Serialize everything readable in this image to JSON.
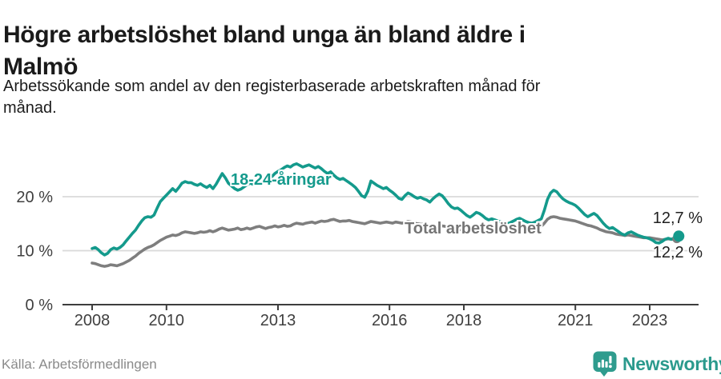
{
  "header": {
    "title_line1": "Högre arbetslöshet bland unga än bland äldre i",
    "title_line2": "Malmö",
    "subtitle_line1": "Arbetssökande som andel av den registerbaserade arbetskraften månad för",
    "subtitle_line2": "månad."
  },
  "footer": {
    "source": "Källa: Arbetsförmedlingen",
    "brand_name": "Newsworthy",
    "brand_icon": "newsworthy-chart-bubble-icon",
    "brand_color": "#2f9c8e"
  },
  "chart_data": {
    "type": "line",
    "title": "Högre arbetslöshet bland unga än bland äldre i Malmö",
    "subtitle": "Arbetssökande som andel av den registerbaserade arbetskraften månad för månad.",
    "xlabel": "",
    "ylabel": "",
    "x_start": {
      "year": 2008,
      "month": 1
    },
    "x_end": {
      "year": 2023,
      "month": 10
    },
    "x_ticks": [
      2008,
      2010,
      2013,
      2016,
      2018,
      2021,
      2023
    ],
    "y_ticks": [
      {
        "value": 0,
        "label": "0 %"
      },
      {
        "value": 10,
        "label": "10 %"
      },
      {
        "value": 20,
        "label": "20 %"
      }
    ],
    "ylim": [
      0,
      27.5
    ],
    "grid": "horizontal-light-gridlines-at-10-and-20",
    "legend_position": "inline-labels-on-lines",
    "axis_color": "#3d3d3d",
    "grid_color": "#d9d9d9",
    "series": [
      {
        "name": "Total arbetslöshet",
        "color": "#7e7e7e",
        "end_value": 12.2,
        "end_label": "12,2 %",
        "values": [
          7.7,
          7.6,
          7.4,
          7.2,
          7.1,
          7.2,
          7.4,
          7.3,
          7.2,
          7.4,
          7.6,
          7.9,
          8.2,
          8.6,
          9.0,
          9.5,
          9.9,
          10.3,
          10.6,
          10.8,
          11.1,
          11.5,
          11.9,
          12.2,
          12.5,
          12.7,
          12.9,
          12.8,
          13.0,
          13.3,
          13.5,
          13.4,
          13.3,
          13.2,
          13.3,
          13.5,
          13.4,
          13.5,
          13.7,
          13.5,
          13.7,
          14.0,
          14.2,
          14.0,
          13.8,
          13.9,
          14.0,
          14.2,
          13.9,
          14.0,
          14.2,
          14.0,
          14.2,
          14.4,
          14.5,
          14.3,
          14.1,
          14.3,
          14.4,
          14.6,
          14.4,
          14.5,
          14.7,
          14.5,
          14.6,
          14.9,
          15.1,
          15.0,
          14.9,
          15.1,
          15.2,
          15.3,
          15.1,
          15.3,
          15.5,
          15.4,
          15.5,
          15.7,
          15.8,
          15.6,
          15.4,
          15.5,
          15.5,
          15.6,
          15.4,
          15.3,
          15.2,
          15.1,
          15.0,
          15.2,
          15.4,
          15.3,
          15.2,
          15.1,
          15.2,
          15.3,
          15.2,
          15.1,
          15.3,
          15.2,
          15.1,
          15.2,
          15.4,
          15.3,
          15.1,
          15.0,
          14.9,
          14.9,
          14.7,
          14.6,
          14.5,
          14.4,
          14.5,
          14.6,
          14.5,
          14.3,
          14.1,
          14.0,
          13.9,
          13.9,
          13.8,
          13.7,
          13.6,
          13.6,
          13.7,
          13.8,
          13.7,
          13.5,
          13.4,
          13.4,
          13.5,
          13.6,
          13.5,
          13.4,
          13.4,
          13.5,
          13.6,
          13.8,
          14.0,
          13.9,
          13.8,
          13.9,
          14.0,
          14.2,
          14.3,
          14.5,
          15.1,
          15.8,
          16.2,
          16.3,
          16.2,
          16.0,
          15.9,
          15.8,
          15.7,
          15.6,
          15.5,
          15.3,
          15.1,
          14.9,
          14.7,
          14.6,
          14.4,
          14.2,
          13.9,
          13.7,
          13.5,
          13.4,
          13.3,
          13.1,
          13.0,
          12.9,
          12.8,
          12.9,
          12.8,
          12.7,
          12.6,
          12.5,
          12.4,
          12.4,
          12.4,
          12.3,
          12.2,
          12.1,
          12.0,
          12.1,
          12.2,
          12.1,
          12.1,
          12.2
        ]
      },
      {
        "name": "18-24-åringar",
        "color": "#149a8c",
        "end_value": 12.7,
        "end_label": "12,7 %",
        "values": [
          10.4,
          10.6,
          10.2,
          9.6,
          9.2,
          9.5,
          10.2,
          10.5,
          10.3,
          10.6,
          11.1,
          11.8,
          12.5,
          13.2,
          13.8,
          14.7,
          15.5,
          16.1,
          16.3,
          16.2,
          16.6,
          17.9,
          19.1,
          19.7,
          20.3,
          20.9,
          21.5,
          21.0,
          21.7,
          22.5,
          22.8,
          22.6,
          22.6,
          22.3,
          22.1,
          22.4,
          22.0,
          21.7,
          22.1,
          21.5,
          22.3,
          23.3,
          24.3,
          23.5,
          22.5,
          22.0,
          21.5,
          21.2,
          21.4,
          21.8,
          22.2,
          22.5,
          22.3,
          22.8,
          23.3,
          23.0,
          22.8,
          23.2,
          23.7,
          24.3,
          24.7,
          25.0,
          25.4,
          25.7,
          25.5,
          25.9,
          26.1,
          25.8,
          25.5,
          25.7,
          25.9,
          25.6,
          25.3,
          25.6,
          25.2,
          24.7,
          24.3,
          24.6,
          24.0,
          23.5,
          23.2,
          23.4,
          23.0,
          22.6,
          22.2,
          21.7,
          21.0,
          20.2,
          19.9,
          21.0,
          22.9,
          22.5,
          22.1,
          21.8,
          21.5,
          21.7,
          21.2,
          20.8,
          20.3,
          19.7,
          19.5,
          20.2,
          20.7,
          20.4,
          20.0,
          19.7,
          19.9,
          19.6,
          19.4,
          19.0,
          19.6,
          20.1,
          20.5,
          20.2,
          19.5,
          18.7,
          18.1,
          17.8,
          17.9,
          17.5,
          17.0,
          16.5,
          16.2,
          16.6,
          17.1,
          16.9,
          16.5,
          16.0,
          15.7,
          15.9,
          15.7,
          15.5,
          15.3,
          15.1,
          15.0,
          15.2,
          15.5,
          15.8,
          16.0,
          15.7,
          15.4,
          15.2,
          15.1,
          15.3,
          15.6,
          15.9,
          17.5,
          19.5,
          20.7,
          21.2,
          20.9,
          20.2,
          19.6,
          19.2,
          18.9,
          18.7,
          18.4,
          17.9,
          17.3,
          16.7,
          16.3,
          16.6,
          16.9,
          16.5,
          15.8,
          15.1,
          14.5,
          14.1,
          14.3,
          13.9,
          13.5,
          13.1,
          12.9,
          13.3,
          13.5,
          13.2,
          12.9,
          12.7,
          12.5,
          12.4,
          12.2,
          11.9,
          11.5,
          11.4,
          11.7,
          12.1,
          12.3,
          12.1,
          12.4,
          12.7
        ]
      }
    ]
  }
}
